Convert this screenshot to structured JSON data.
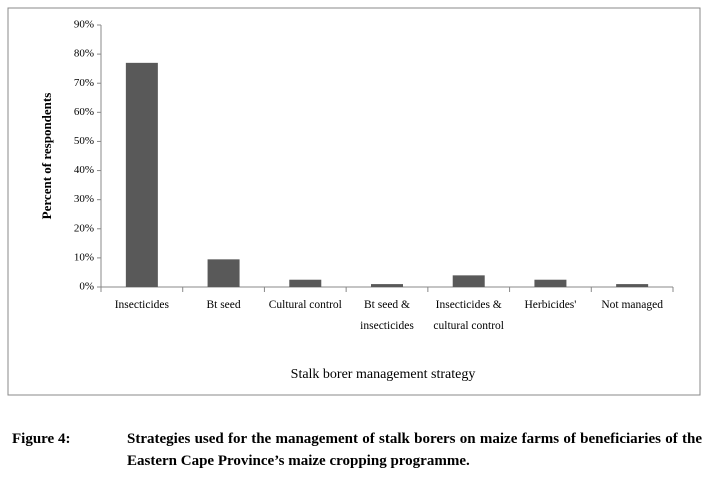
{
  "chart_data": {
    "type": "bar",
    "x_label": "Stalk borer management strategy",
    "y_label": "Percent of respondents",
    "categories": [
      "Insecticides",
      "Bt seed",
      "Cultural control",
      "Bt seed & insecticides",
      "Insecticides & cultural control",
      "Herbicides'",
      "Not managed"
    ],
    "values": [
      77,
      9.5,
      2.5,
      1,
      4,
      2.5,
      1
    ],
    "color": "#595959",
    "ylim": [
      0,
      90
    ],
    "yticks": [
      {
        "value": 0,
        "label": "0%"
      },
      {
        "value": 10,
        "label": "10%"
      },
      {
        "value": 20,
        "label": "20%"
      },
      {
        "value": 30,
        "label": "30%"
      },
      {
        "value": 40,
        "label": "40%"
      },
      {
        "value": 50,
        "label": "50%"
      },
      {
        "value": 60,
        "label": "60%"
      },
      {
        "value": 70,
        "label": "70%"
      },
      {
        "value": 80,
        "label": "80%"
      },
      {
        "value": 90,
        "label": "90%"
      }
    ]
  },
  "caption": {
    "label": "Figure 4:",
    "text": "Strategies used for the management of stalk borers on maize farms of beneficiaries of the Eastern Cape Province’s maize cropping programme."
  }
}
